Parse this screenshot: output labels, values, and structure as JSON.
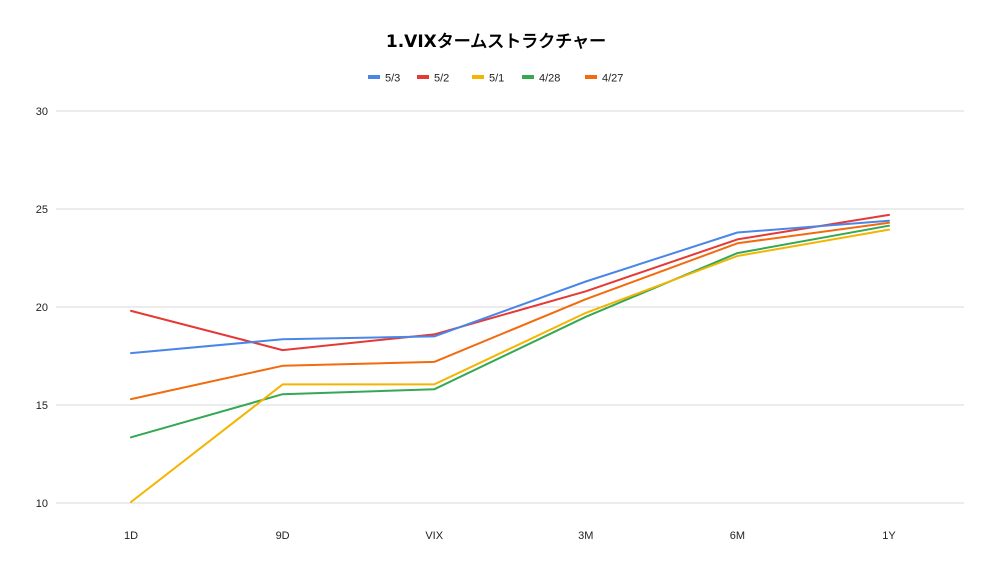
{
  "chart_data": {
    "type": "line",
    "title": "1.VIXタームストラクチャー",
    "categories": [
      "1D",
      "9D",
      "VIX",
      "3M",
      "6M",
      "1Y"
    ],
    "ylim": [
      10,
      30
    ],
    "yticks": [
      10,
      15,
      20,
      25,
      30
    ],
    "grid": true,
    "legend_position": "top",
    "series": [
      {
        "name": "5/3",
        "color": "#4a86e8",
        "values": [
          17.65,
          18.35,
          18.5,
          21.3,
          23.8,
          24.4
        ]
      },
      {
        "name": "5/2",
        "color": "#e53935",
        "values": [
          19.8,
          17.8,
          18.6,
          20.8,
          23.45,
          24.7
        ]
      },
      {
        "name": "5/1",
        "color": "#f4b400",
        "values": [
          10.05,
          16.05,
          16.05,
          19.7,
          22.6,
          23.95
        ]
      },
      {
        "name": "4/28",
        "color": "#34a853",
        "values": [
          13.35,
          15.55,
          15.8,
          19.5,
          22.75,
          24.15
        ]
      },
      {
        "name": "4/27",
        "color": "#f26b0f",
        "values": [
          15.3,
          17.0,
          17.2,
          20.4,
          23.25,
          24.3
        ]
      }
    ]
  }
}
